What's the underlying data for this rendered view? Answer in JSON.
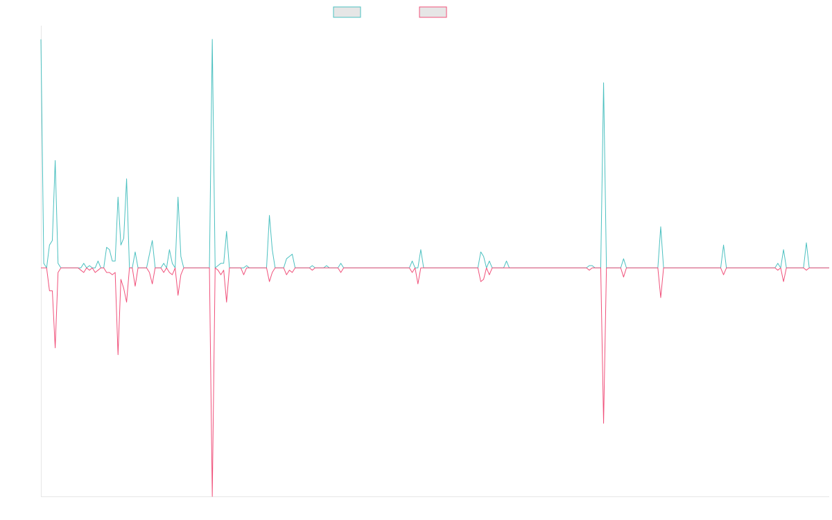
{
  "chart_data": {
    "type": "line",
    "title": "",
    "xlabel": "",
    "ylabel": "",
    "ylim": [
      -1,
      1.06
    ],
    "grid": false,
    "legend": {
      "placement": "top-center",
      "entries": [
        "",
        ""
      ]
    },
    "series": [
      {
        "name": "",
        "color": "#4bc0c0",
        "fill": "#e6e6e6",
        "values": [
          1.0,
          0.02,
          0.0,
          0.1,
          0.12,
          0.47,
          0.02,
          0.0,
          0.0,
          0.0,
          0.0,
          0.0,
          0.0,
          0.0,
          0.0,
          0.02,
          0.0,
          0.01,
          0.0,
          0.0,
          0.03,
          0.0,
          0.0,
          0.09,
          0.08,
          0.03,
          0.03,
          0.31,
          0.1,
          0.13,
          0.39,
          0.0,
          0.0,
          0.07,
          0.0,
          0.0,
          0.0,
          0.0,
          0.06,
          0.12,
          0.0,
          0.0,
          0.0,
          0.02,
          0.0,
          0.08,
          0.02,
          0.0,
          0.31,
          0.05,
          0.0,
          0.0,
          0.0,
          0.0,
          0.0,
          0.0,
          0.0,
          0.0,
          0.0,
          0.0,
          1.0,
          0.0,
          0.01,
          0.02,
          0.02,
          0.16,
          0.0,
          0.0,
          0.0,
          0.0,
          0.0,
          0.0,
          0.01,
          0.0,
          0.0,
          0.0,
          0.0,
          0.0,
          0.0,
          0.0,
          0.23,
          0.08,
          0.0,
          0.0,
          0.0,
          0.0,
          0.04,
          0.05,
          0.06,
          0.0,
          0.0,
          0.0,
          0.0,
          0.0,
          0.0,
          0.01,
          0.0,
          0.0,
          0.0,
          0.0,
          0.01,
          0.0,
          0.0,
          0.0,
          0.0,
          0.02,
          0.0,
          0.0,
          0.0,
          0.0,
          0.0,
          0.0,
          0.0,
          0.0,
          0.0,
          0.0,
          0.0,
          0.0,
          0.0,
          0.0,
          0.0,
          0.0,
          0.0,
          0.0,
          0.0,
          0.0,
          0.0,
          0.0,
          0.0,
          0.0,
          0.03,
          0.0,
          0.0,
          0.08,
          0.0,
          0.0,
          0.0,
          0.0,
          0.0,
          0.0,
          0.0,
          0.0,
          0.0,
          0.0,
          0.0,
          0.0,
          0.0,
          0.0,
          0.0,
          0.0,
          0.0,
          0.0,
          0.0,
          0.0,
          0.07,
          0.05,
          0.0,
          0.03,
          0.0,
          0.0,
          0.0,
          0.0,
          0.0,
          0.03,
          0.0,
          0.0,
          0.0,
          0.0,
          0.0,
          0.0,
          0.0,
          0.0,
          0.0,
          0.0,
          0.0,
          0.0,
          0.0,
          0.0,
          0.0,
          0.0,
          0.0,
          0.0,
          0.0,
          0.0,
          0.0,
          0.0,
          0.0,
          0.0,
          0.0,
          0.0,
          0.0,
          0.0,
          0.01,
          0.01,
          0.0,
          0.0,
          0.0,
          0.81,
          0.0,
          0.0,
          0.0,
          0.0,
          0.0,
          0.0,
          0.04,
          0.0,
          0.0,
          0.0,
          0.0,
          0.0,
          0.0,
          0.0,
          0.0,
          0.0,
          0.0,
          0.0,
          0.0,
          0.18,
          0.0,
          0.0,
          0.0,
          0.0,
          0.0,
          0.0,
          0.0,
          0.0,
          0.0,
          0.0,
          0.0,
          0.0,
          0.0,
          0.0,
          0.0,
          0.0,
          0.0,
          0.0,
          0.0,
          0.0,
          0.0,
          0.1,
          0.0,
          0.0,
          0.0,
          0.0,
          0.0,
          0.0,
          0.0,
          0.0,
          0.0,
          0.0,
          0.0,
          0.0,
          0.0,
          0.0,
          0.0,
          0.0,
          0.0,
          0.0,
          0.02,
          0.0,
          0.08,
          0.0,
          0.0,
          0.0,
          0.0,
          0.0,
          0.0,
          0.0,
          0.11,
          0.0,
          0.0,
          0.0,
          0.0,
          0.0,
          0.0,
          0.0,
          0.0
        ]
      },
      {
        "name": "",
        "color": "#f0507a",
        "fill": "#e6e6e6",
        "values": [
          0.0,
          0.0,
          0.0,
          -0.1,
          -0.1,
          -0.35,
          -0.02,
          0.0,
          0.0,
          0.0,
          0.0,
          0.0,
          0.0,
          0.0,
          -0.01,
          -0.02,
          0.0,
          -0.01,
          0.0,
          -0.02,
          -0.01,
          0.0,
          0.0,
          -0.02,
          -0.02,
          -0.03,
          -0.02,
          -0.38,
          -0.05,
          -0.09,
          -0.15,
          0.0,
          0.0,
          -0.08,
          0.0,
          0.0,
          0.0,
          0.0,
          -0.02,
          -0.07,
          0.0,
          0.0,
          0.0,
          -0.02,
          0.0,
          -0.02,
          -0.03,
          0.0,
          -0.12,
          -0.03,
          0.0,
          0.0,
          0.0,
          0.0,
          0.0,
          0.0,
          0.0,
          0.0,
          0.0,
          0.0,
          -1.0,
          0.0,
          -0.01,
          -0.03,
          -0.01,
          -0.15,
          0.0,
          0.0,
          0.0,
          0.0,
          0.0,
          -0.03,
          0.0,
          0.0,
          0.0,
          0.0,
          0.0,
          0.0,
          0.0,
          0.0,
          -0.06,
          -0.02,
          0.0,
          0.0,
          0.0,
          0.0,
          -0.03,
          -0.01,
          -0.02,
          0.0,
          0.0,
          0.0,
          0.0,
          0.0,
          0.0,
          -0.01,
          0.0,
          0.0,
          0.0,
          0.0,
          0.0,
          0.0,
          0.0,
          0.0,
          0.0,
          -0.02,
          0.0,
          0.0,
          0.0,
          0.0,
          0.0,
          0.0,
          0.0,
          0.0,
          0.0,
          0.0,
          0.0,
          0.0,
          0.0,
          0.0,
          0.0,
          0.0,
          0.0,
          0.0,
          0.0,
          0.0,
          0.0,
          0.0,
          0.0,
          0.0,
          -0.02,
          0.0,
          -0.07,
          0.0,
          0.0,
          0.0,
          0.0,
          0.0,
          0.0,
          0.0,
          0.0,
          0.0,
          0.0,
          0.0,
          0.0,
          0.0,
          0.0,
          0.0,
          0.0,
          0.0,
          0.0,
          0.0,
          0.0,
          0.0,
          -0.06,
          -0.05,
          0.0,
          -0.03,
          0.0,
          0.0,
          0.0,
          0.0,
          0.0,
          0.0,
          0.0,
          0.0,
          0.0,
          0.0,
          0.0,
          0.0,
          0.0,
          0.0,
          0.0,
          0.0,
          0.0,
          0.0,
          0.0,
          0.0,
          0.0,
          0.0,
          0.0,
          0.0,
          0.0,
          0.0,
          0.0,
          0.0,
          0.0,
          0.0,
          0.0,
          0.0,
          0.0,
          0.0,
          -0.01,
          0.0,
          0.0,
          0.0,
          0.0,
          -0.68,
          0.0,
          0.0,
          0.0,
          0.0,
          0.0,
          0.0,
          -0.04,
          0.0,
          0.0,
          0.0,
          0.0,
          0.0,
          0.0,
          0.0,
          0.0,
          0.0,
          0.0,
          0.0,
          0.0,
          -0.13,
          0.0,
          0.0,
          0.0,
          0.0,
          0.0,
          0.0,
          0.0,
          0.0,
          0.0,
          0.0,
          0.0,
          0.0,
          0.0,
          0.0,
          0.0,
          0.0,
          0.0,
          0.0,
          0.0,
          0.0,
          0.0,
          -0.03,
          0.0,
          0.0,
          0.0,
          0.0,
          0.0,
          0.0,
          0.0,
          0.0,
          0.0,
          0.0,
          0.0,
          0.0,
          0.0,
          0.0,
          0.0,
          0.0,
          0.0,
          0.0,
          -0.01,
          0.0,
          -0.06,
          0.0,
          0.0,
          0.0,
          0.0,
          0.0,
          0.0,
          0.0,
          -0.01,
          0.0,
          0.0,
          0.0,
          0.0,
          0.0,
          0.0,
          0.0,
          0.0
        ]
      }
    ]
  }
}
